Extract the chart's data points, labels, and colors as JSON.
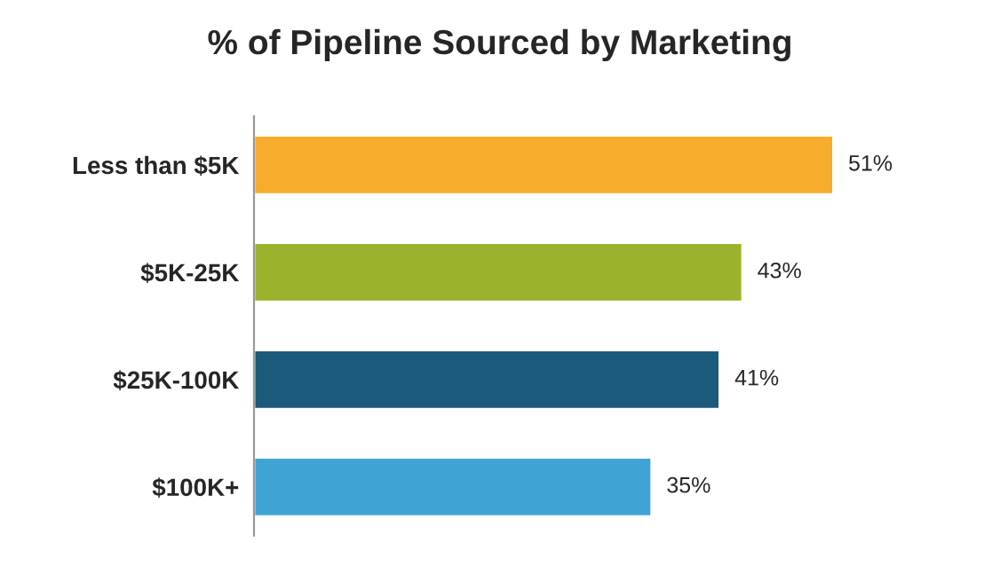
{
  "chart_data": {
    "type": "bar",
    "orientation": "horizontal",
    "title": "% of Pipeline Sourced by Marketing",
    "categories": [
      "Less than $5K",
      "$5K-25K",
      "$25K-100K",
      "$100K+"
    ],
    "values": [
      51,
      43,
      41,
      35
    ],
    "colors": [
      "#f7ac2c",
      "#9bb22c",
      "#1b5a7a",
      "#3fa4d4"
    ],
    "value_labels": [
      "51%",
      "43%",
      "41%",
      "35%"
    ],
    "grid": false,
    "legend": false
  }
}
